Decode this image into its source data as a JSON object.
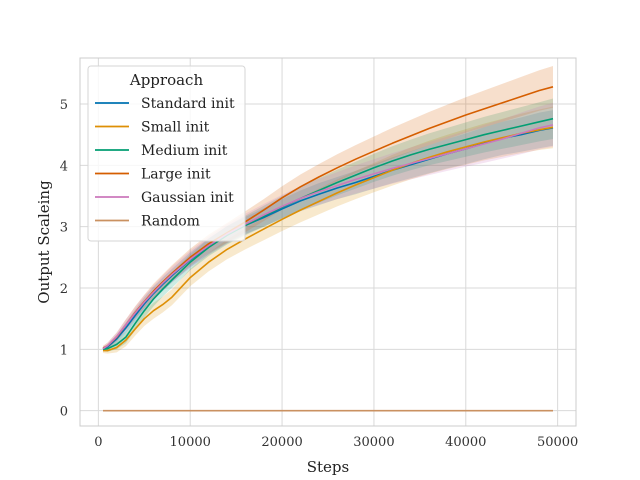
{
  "chart_data": {
    "type": "line",
    "xlabel": "Steps",
    "ylabel": "Output Scaleing",
    "xlim": [
      -2000,
      52000
    ],
    "ylim": [
      -0.25,
      5.75
    ],
    "xticks": [
      0,
      10000,
      20000,
      30000,
      40000,
      50000
    ],
    "yticks": [
      0,
      1,
      2,
      3,
      4,
      5
    ],
    "grid": true,
    "legend": {
      "title": "Approach",
      "position": "top-left"
    },
    "x": [
      500,
      1000,
      2000,
      3000,
      4000,
      5000,
      6000,
      7000,
      8000,
      10000,
      12000,
      14000,
      16000,
      18000,
      20000,
      22000,
      24000,
      26000,
      28000,
      30000,
      32000,
      34000,
      36000,
      38000,
      40000,
      42000,
      44000,
      46000,
      48000,
      49500
    ],
    "series": [
      {
        "name": "Standard init",
        "color": "#0173b2",
        "values": [
          1.0,
          1.04,
          1.17,
          1.35,
          1.55,
          1.74,
          1.91,
          2.06,
          2.2,
          2.46,
          2.68,
          2.87,
          3.02,
          3.15,
          3.29,
          3.42,
          3.53,
          3.63,
          3.72,
          3.82,
          3.92,
          4.01,
          4.1,
          4.19,
          4.27,
          4.36,
          4.44,
          4.5,
          4.57,
          4.61
        ],
        "lower": [
          0.97,
          1.0,
          1.1,
          1.26,
          1.45,
          1.63,
          1.8,
          1.95,
          2.09,
          2.34,
          2.55,
          2.73,
          2.88,
          3.0,
          3.13,
          3.25,
          3.35,
          3.45,
          3.53,
          3.62,
          3.71,
          3.79,
          3.87,
          3.95,
          4.02,
          4.1,
          4.17,
          4.22,
          4.28,
          4.32
        ],
        "upper": [
          1.03,
          1.08,
          1.24,
          1.44,
          1.65,
          1.85,
          2.02,
          2.17,
          2.31,
          2.58,
          2.81,
          3.01,
          3.16,
          3.3,
          3.45,
          3.59,
          3.71,
          3.81,
          3.91,
          4.02,
          4.13,
          4.23,
          4.33,
          4.43,
          4.52,
          4.62,
          4.71,
          4.78,
          4.86,
          4.9
        ]
      },
      {
        "name": "Small init",
        "color": "#de8f05",
        "values": [
          0.98,
          0.98,
          1.03,
          1.15,
          1.33,
          1.5,
          1.63,
          1.73,
          1.85,
          2.17,
          2.42,
          2.63,
          2.8,
          2.96,
          3.12,
          3.27,
          3.41,
          3.55,
          3.68,
          3.8,
          3.92,
          4.03,
          4.13,
          4.22,
          4.3,
          4.38,
          4.45,
          4.52,
          4.58,
          4.62
        ],
        "lower": [
          0.94,
          0.93,
          0.95,
          1.05,
          1.22,
          1.38,
          1.5,
          1.6,
          1.72,
          2.03,
          2.27,
          2.47,
          2.63,
          2.78,
          2.93,
          3.07,
          3.2,
          3.33,
          3.45,
          3.56,
          3.67,
          3.77,
          3.86,
          3.94,
          4.01,
          4.08,
          4.14,
          4.2,
          4.25,
          4.28
        ],
        "upper": [
          1.02,
          1.03,
          1.11,
          1.25,
          1.44,
          1.62,
          1.76,
          1.86,
          1.98,
          2.31,
          2.57,
          2.79,
          2.97,
          3.14,
          3.31,
          3.47,
          3.62,
          3.77,
          3.91,
          4.04,
          4.17,
          4.29,
          4.4,
          4.5,
          4.59,
          4.68,
          4.76,
          4.84,
          4.91,
          4.96
        ]
      },
      {
        "name": "Medium init",
        "color": "#029e73",
        "values": [
          1.0,
          1.01,
          1.08,
          1.2,
          1.42,
          1.63,
          1.82,
          1.98,
          2.13,
          2.42,
          2.66,
          2.86,
          3.02,
          3.17,
          3.32,
          3.46,
          3.59,
          3.72,
          3.84,
          3.96,
          4.07,
          4.17,
          4.26,
          4.34,
          4.42,
          4.5,
          4.57,
          4.64,
          4.71,
          4.76
        ],
        "lower": [
          0.97,
          0.96,
          1.0,
          1.1,
          1.31,
          1.52,
          1.7,
          1.86,
          2.0,
          2.29,
          2.52,
          2.71,
          2.86,
          3.0,
          3.14,
          3.27,
          3.39,
          3.51,
          3.62,
          3.73,
          3.83,
          3.92,
          4.0,
          4.07,
          4.14,
          4.21,
          4.27,
          4.33,
          4.39,
          4.43
        ],
        "upper": [
          1.03,
          1.06,
          1.16,
          1.3,
          1.53,
          1.74,
          1.94,
          2.1,
          2.26,
          2.55,
          2.8,
          3.01,
          3.18,
          3.34,
          3.5,
          3.65,
          3.79,
          3.93,
          4.06,
          4.19,
          4.31,
          4.42,
          4.52,
          4.61,
          4.7,
          4.79,
          4.87,
          4.95,
          5.03,
          5.09
        ]
      },
      {
        "name": "Large init",
        "color": "#d55e00",
        "values": [
          1.02,
          1.06,
          1.2,
          1.4,
          1.6,
          1.78,
          1.95,
          2.1,
          2.24,
          2.5,
          2.72,
          2.9,
          3.08,
          3.27,
          3.47,
          3.65,
          3.81,
          3.96,
          4.1,
          4.23,
          4.36,
          4.48,
          4.6,
          4.71,
          4.82,
          4.92,
          5.02,
          5.12,
          5.22,
          5.28
        ],
        "lower": [
          0.98,
          1.01,
          1.13,
          1.31,
          1.5,
          1.67,
          1.83,
          1.98,
          2.11,
          2.36,
          2.57,
          2.74,
          2.91,
          3.09,
          3.28,
          3.45,
          3.6,
          3.74,
          3.87,
          3.99,
          4.11,
          4.22,
          4.33,
          4.43,
          4.53,
          4.62,
          4.71,
          4.8,
          4.89,
          4.94
        ],
        "upper": [
          1.06,
          1.11,
          1.27,
          1.49,
          1.7,
          1.89,
          2.07,
          2.22,
          2.37,
          2.64,
          2.87,
          3.06,
          3.25,
          3.45,
          3.66,
          3.85,
          4.02,
          4.18,
          4.33,
          4.47,
          4.61,
          4.74,
          4.87,
          4.99,
          5.11,
          5.22,
          5.33,
          5.44,
          5.55,
          5.62
        ]
      },
      {
        "name": "Gaussian init",
        "color": "#cc78bc",
        "values": [
          1.01,
          1.06,
          1.21,
          1.4,
          1.59,
          1.77,
          1.93,
          2.08,
          2.22,
          2.47,
          2.69,
          2.88,
          3.04,
          3.19,
          3.33,
          3.46,
          3.57,
          3.67,
          3.77,
          3.86,
          3.95,
          4.03,
          4.11,
          4.19,
          4.27,
          4.35,
          4.43,
          4.52,
          4.61,
          4.66
        ],
        "lower": [
          0.97,
          1.01,
          1.14,
          1.31,
          1.49,
          1.66,
          1.82,
          1.96,
          2.09,
          2.33,
          2.54,
          2.72,
          2.87,
          3.01,
          3.14,
          3.26,
          3.36,
          3.45,
          3.54,
          3.62,
          3.7,
          3.77,
          3.84,
          3.91,
          3.98,
          4.04,
          4.11,
          4.18,
          4.26,
          4.3
        ],
        "upper": [
          1.05,
          1.11,
          1.28,
          1.49,
          1.69,
          1.88,
          2.04,
          2.2,
          2.35,
          2.61,
          2.84,
          3.04,
          3.21,
          3.37,
          3.52,
          3.66,
          3.78,
          3.89,
          4.0,
          4.1,
          4.2,
          4.29,
          4.38,
          4.47,
          4.56,
          4.66,
          4.75,
          4.86,
          4.96,
          5.02
        ]
      },
      {
        "name": "Random",
        "color": "#ca9161",
        "values": [
          0,
          0,
          0,
          0,
          0,
          0,
          0,
          0,
          0,
          0,
          0,
          0,
          0,
          0,
          0,
          0,
          0,
          0,
          0,
          0,
          0,
          0,
          0,
          0,
          0,
          0,
          0,
          0,
          0,
          0
        ]
      }
    ]
  }
}
